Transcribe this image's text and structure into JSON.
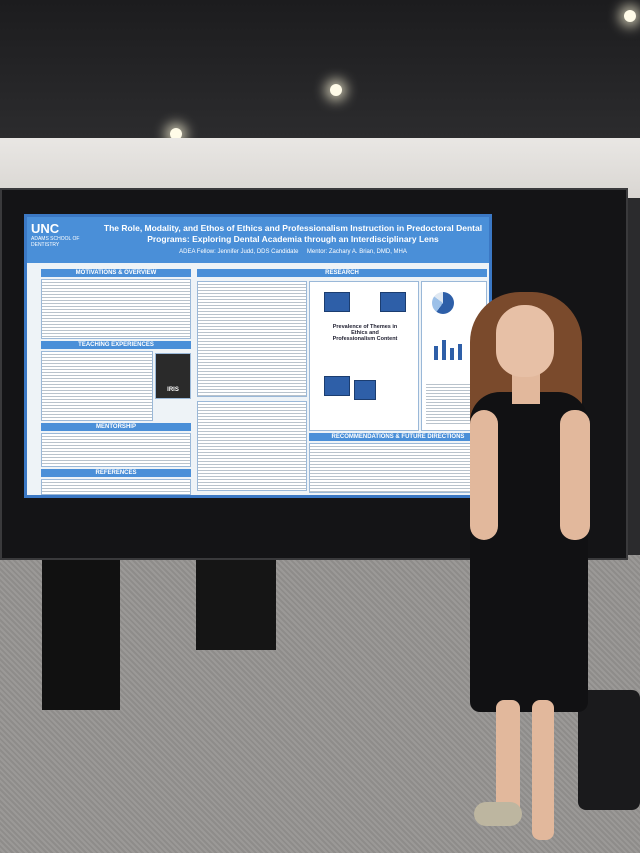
{
  "poster": {
    "logo": "UNC",
    "school": "ADAMS SCHOOL OF DENTISTRY",
    "title": "The Role, Modality, and Ethos of Ethics and Professionalism Instruction in Predoctoral Dental Programs: Exploring Dental Academia through an Interdisciplinary Lens",
    "fellow": "ADEA Fellow: Jennifer Judd, DDS Candidate",
    "mentor": "Mentor: Zachary A. Brian, DMD, MHA",
    "sections": {
      "motivations": "MOTIVATIONS & OVERVIEW",
      "teaching": "TEACHING EXPERIENCES",
      "mentorship": "MENTORSHIP",
      "references": "REFERENCES",
      "research": "RESEARCH",
      "recommendations": "RECOMMENDATIONS & FUTURE DIRECTIONS"
    },
    "center_label": "Prevalence of Themes in Ethics and Professionalism Content",
    "iris": "IRIS"
  },
  "colors": {
    "poster_blue": "#4a8fd8",
    "dress": "#111113"
  }
}
